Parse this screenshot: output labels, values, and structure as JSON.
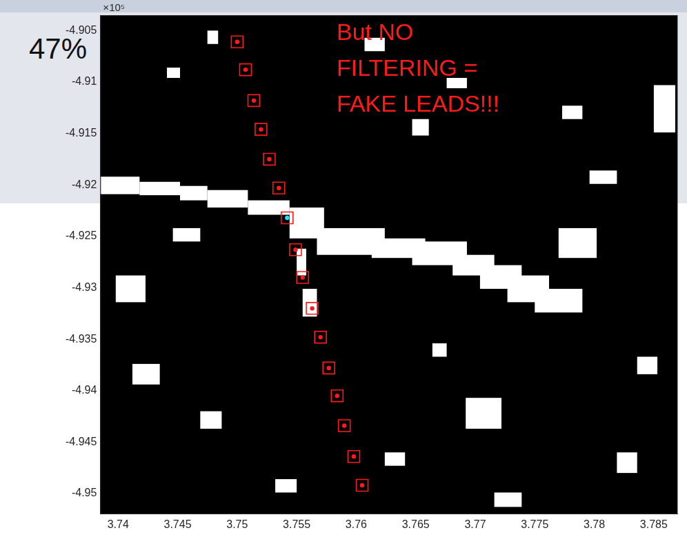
{
  "slide": {
    "text": "47%"
  },
  "chart_data": {
    "type": "scatter",
    "y_multiplier": "×10⁵",
    "annotation": "But NO FILTERING = FAKE LEADS!!!",
    "xlim": [
      3.7385,
      3.787
    ],
    "ylim": [
      -4.952,
      -4.9035
    ],
    "xticks": [
      3.74,
      3.745,
      3.75,
      3.755,
      3.76,
      3.765,
      3.77,
      3.775,
      3.78,
      3.785
    ],
    "yticks": [
      -4.95,
      -4.945,
      -4.94,
      -4.935,
      -4.93,
      -4.925,
      -4.92,
      -4.915,
      -4.91,
      -4.905
    ],
    "grid": false,
    "x": [
      3.75,
      3.7507,
      3.7514,
      3.752,
      3.7527,
      3.7535,
      3.7542,
      3.7549,
      3.7555,
      3.7563,
      3.757,
      3.7577,
      3.7584,
      3.759,
      3.7598,
      3.7605
    ],
    "series": [
      {
        "marker": "square",
        "color": "#ff1a1a",
        "colors": [
          "#ff1a1a",
          "#ff1a1a",
          "#ff1a1a",
          "#ff1a1a",
          "#ff1a1a",
          "#ff1a1a",
          "#22e0ff",
          "#ff1a1a",
          "#ff1a1a",
          "#ff1a1a",
          "#ff1a1a",
          "#ff1a1a",
          "#ff1a1a",
          "#ff1a1a",
          "#ff1a1a",
          "#ff1a1a"
        ],
        "values": [
          -4.9061,
          -4.9088,
          -4.9118,
          -4.9146,
          -4.9175,
          -4.9203,
          -4.9232,
          -4.9263,
          -4.929,
          -4.932,
          -4.9348,
          -4.9378,
          -4.9405,
          -4.9434,
          -4.9464,
          -4.9492
        ]
      }
    ],
    "leads": [
      [
        3.7385,
        -4.9192,
        3.7418,
        -4.9209
      ],
      [
        3.7418,
        -4.9197,
        3.7452,
        -4.921
      ],
      [
        3.7452,
        -4.9201,
        3.7475,
        -4.9215
      ],
      [
        3.7475,
        -4.9205,
        3.7509,
        -4.9222
      ],
      [
        3.7509,
        -4.9215,
        3.7544,
        -4.9229
      ],
      [
        3.7544,
        -4.9222,
        3.7573,
        -4.9252
      ],
      [
        3.7567,
        -4.9242,
        3.7624,
        -4.9268
      ],
      [
        3.7613,
        -4.9252,
        3.7658,
        -4.9271
      ],
      [
        3.7647,
        -4.9255,
        3.7693,
        -4.9278
      ],
      [
        3.7681,
        -4.9268,
        3.7716,
        -4.9288
      ],
      [
        3.7704,
        -4.9278,
        3.7739,
        -4.9301
      ],
      [
        3.7727,
        -4.9288,
        3.7762,
        -4.9314
      ],
      [
        3.775,
        -4.9301,
        3.779,
        -4.9324
      ],
      [
        3.755,
        -4.9262,
        3.7558,
        -4.9288
      ],
      [
        3.7555,
        -4.9301,
        3.7567,
        -4.9328
      ],
      [
        3.777,
        -4.9242,
        3.7802,
        -4.9271
      ],
      [
        3.7692,
        -4.9407,
        3.7722,
        -4.9437
      ],
      [
        3.785,
        -4.9103,
        3.7868,
        -4.9149
      ],
      [
        3.7475,
        -4.905,
        3.7484,
        -4.9063
      ],
      [
        3.7441,
        -4.9086,
        3.7452,
        -4.9096
      ],
      [
        3.7607,
        -4.9057,
        3.7624,
        -4.907
      ],
      [
        3.7676,
        -4.9096,
        3.7693,
        -4.9106
      ],
      [
        3.7446,
        -4.9242,
        3.7469,
        -4.9255
      ],
      [
        3.7398,
        -4.9288,
        3.7423,
        -4.9314
      ],
      [
        3.7469,
        -4.942,
        3.7487,
        -4.9437
      ],
      [
        3.7796,
        -4.9186,
        3.7819,
        -4.9199
      ],
      [
        3.7836,
        -4.9367,
        3.7853,
        -4.9384
      ],
      [
        3.7624,
        -4.946,
        3.7641,
        -4.9473
      ],
      [
        3.7716,
        -4.9499,
        3.7739,
        -4.9513
      ],
      [
        3.7647,
        -4.9136,
        3.7661,
        -4.9152
      ],
      [
        3.7773,
        -4.9123,
        3.779,
        -4.9136
      ],
      [
        3.7412,
        -4.9374,
        3.7435,
        -4.9394
      ],
      [
        3.7532,
        -4.9486,
        3.755,
        -4.9499
      ],
      [
        3.7664,
        -4.9354,
        3.7676,
        -4.9367
      ],
      [
        3.7819,
        -4.946,
        3.7836,
        -4.948
      ]
    ]
  }
}
